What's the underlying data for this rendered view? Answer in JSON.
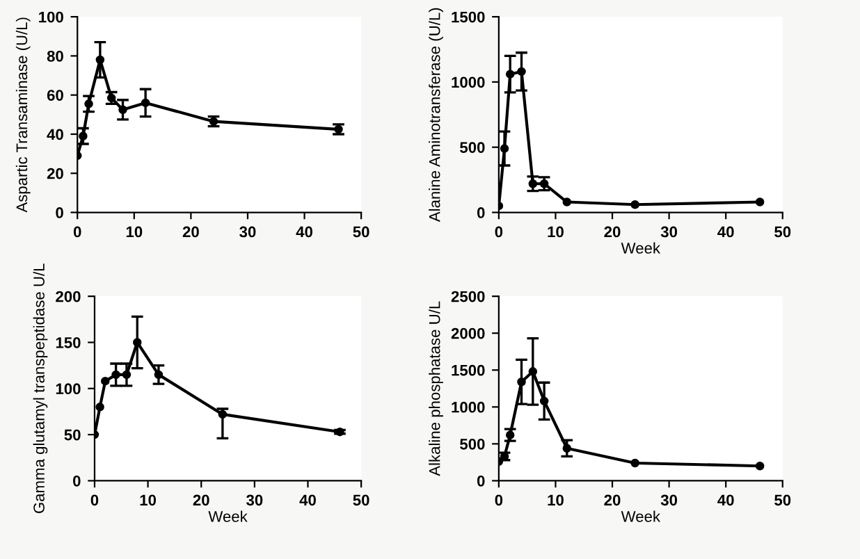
{
  "chart_data": [
    {
      "type": "line",
      "ylabel": "Aspartic Transaminase (U/L)",
      "marker": "circle",
      "grid": false,
      "xlim": [
        0,
        50
      ],
      "xticks": [
        0,
        10,
        20,
        30,
        40,
        50
      ],
      "ylim": [
        0,
        100
      ],
      "yticks": [
        0,
        20,
        40,
        60,
        80,
        100
      ],
      "series": [
        {
          "color": "#000000",
          "x": [
            0,
            1,
            2,
            4,
            6,
            8,
            12,
            24,
            46
          ],
          "values": [
            29,
            39,
            55.5,
            78,
            58.5,
            52.5,
            56,
            46.5,
            42.5
          ],
          "errors": [
            null,
            4,
            4,
            9,
            3,
            5,
            7,
            2.5,
            2.5
          ]
        }
      ]
    },
    {
      "type": "line",
      "xlabel": "Week",
      "ylabel": "Alanine Aminotransferase (U/L)",
      "marker": "circle",
      "grid": false,
      "xlim": [
        0,
        50
      ],
      "xticks": [
        0,
        10,
        20,
        30,
        40,
        50
      ],
      "ylim": [
        0,
        1500
      ],
      "yticks": [
        0,
        500,
        1000,
        1500
      ],
      "series": [
        {
          "color": "#000000",
          "x": [
            0,
            1,
            2,
            4,
            6,
            8,
            12,
            24,
            46
          ],
          "values": [
            50,
            490,
            1060,
            1080,
            220,
            220,
            80,
            60,
            80
          ],
          "errors": [
            null,
            130,
            140,
            145,
            55,
            50,
            null,
            null,
            null
          ]
        }
      ]
    },
    {
      "type": "line",
      "xlabel": "Week",
      "ylabel": "Gamma glutamyl transpeptidase U/L",
      "marker": "circle",
      "grid": false,
      "xlim": [
        0,
        50
      ],
      "xticks": [
        0,
        10,
        20,
        30,
        40,
        50
      ],
      "ylim": [
        0,
        200
      ],
      "yticks": [
        0,
        50,
        100,
        150,
        200
      ],
      "series": [
        {
          "color": "#000000",
          "x": [
            0,
            1,
            2,
            4,
            6,
            8,
            12,
            24,
            46
          ],
          "values": [
            50,
            80,
            108,
            115,
            115,
            150,
            115,
            72,
            53
          ],
          "errors": [
            null,
            null,
            null,
            12,
            12,
            28,
            10,
            [
              46,
              78
            ],
            [
              51,
              55
            ]
          ]
        }
      ]
    },
    {
      "type": "line",
      "xlabel": "Week",
      "ylabel": "Alkaline phosphatase U/L",
      "marker": "circle",
      "grid": false,
      "xlim": [
        0,
        50
      ],
      "xticks": [
        0,
        10,
        20,
        30,
        40,
        50
      ],
      "ylim": [
        0,
        2500
      ],
      "yticks": [
        0,
        500,
        1000,
        1500,
        2000,
        2500
      ],
      "series": [
        {
          "color": "#000000",
          "x": [
            0,
            1,
            2,
            4,
            6,
            8,
            12,
            24,
            46
          ],
          "values": [
            260,
            330,
            620,
            1340,
            1480,
            1080,
            440,
            240,
            200
          ],
          "errors": [
            null,
            50,
            80,
            300,
            450,
            250,
            110,
            null,
            null
          ]
        }
      ]
    }
  ]
}
